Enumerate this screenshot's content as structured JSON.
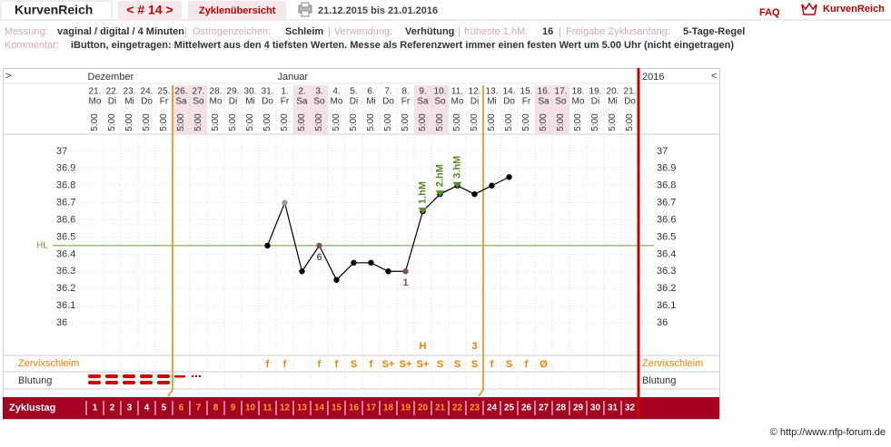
{
  "header": {
    "app": "KurvenReich",
    "cycle_nav": "< # 14 >",
    "overview": "Zyklenübersicht",
    "range": "21.12.2015 bis 21.01.2016",
    "faq": "FAQ",
    "logo": "KurvenReich"
  },
  "info": {
    "measure_label": "Messung:",
    "measure": "vaginal / digital / 4 Minuten",
    "estrogen_label": "Östrogenzeichen:",
    "estrogen": "Schleim",
    "use_label": "Verwendung:",
    "use": "Verhütung",
    "earliest_label": "früheste 1.hM:",
    "earliest": "16",
    "release_label": "Freigabe Zyklusanfang:",
    "release": "5-Tage-Regel",
    "comment_label": "Kommentar:",
    "comment": "iButton, eingetragen: Mittelwert aus den 4 tiefsten Werten. Messe als Referenzwert immer einen festen Wert um 5.00 Uhr (nicht eingetragen)"
  },
  "chart_data": {
    "type": "line",
    "nav_prev": ">",
    "nav_next": "<",
    "year": "2016",
    "months": [
      {
        "label": "Dezember",
        "day": 1
      },
      {
        "label": "Januar",
        "day": 12
      }
    ],
    "dates": [
      "21.",
      "22.",
      "23.",
      "24.",
      "25.",
      "26.",
      "27.",
      "28.",
      "29.",
      "30.",
      "31.",
      "1.",
      "2.",
      "3.",
      "4.",
      "5.",
      "6.",
      "7.",
      "8.",
      "9.",
      "10.",
      "11.",
      "12.",
      "13.",
      "14.",
      "15.",
      "16.",
      "17.",
      "18.",
      "19.",
      "20.",
      "21."
    ],
    "weekdays": [
      "Mo",
      "Di",
      "Mi",
      "Do",
      "Fr",
      "Sa",
      "So",
      "Mo",
      "Di",
      "Mi",
      "Do",
      "Fr",
      "Sa",
      "So",
      "Mo",
      "Di",
      "Mi",
      "Do",
      "Fr",
      "Sa",
      "So",
      "Mo",
      "Di",
      "Mi",
      "Do",
      "Fr",
      "Sa",
      "So",
      "Mo",
      "Di",
      "Mi",
      "Do"
    ],
    "measure_time": "5:00",
    "categories": [
      1,
      2,
      3,
      4,
      5,
      6,
      7,
      8,
      9,
      10,
      11,
      12,
      13,
      14,
      15,
      16,
      17,
      18,
      19,
      20,
      21,
      22,
      23,
      24,
      25,
      26,
      27,
      28,
      29,
      30,
      31,
      32
    ],
    "values": [
      null,
      null,
      null,
      null,
      null,
      null,
      null,
      null,
      null,
      null,
      36.45,
      36.7,
      36.3,
      36.45,
      36.25,
      36.35,
      36.35,
      36.3,
      36.3,
      36.65,
      36.75,
      36.8,
      36.75,
      36.8,
      36.85,
      null,
      null,
      null,
      null,
      null,
      null,
      null
    ],
    "color": "#000000",
    "excluded_days": [
      12
    ],
    "ylim": [
      35.82,
      37.1
    ],
    "yticks": [
      36,
      36.1,
      36.2,
      36.3,
      36.4,
      36.5,
      36.6,
      36.7,
      36.8,
      36.9,
      37
    ],
    "grid": true,
    "hl": {
      "label": "HL",
      "value": 36.45,
      "color": "#6a9a3a"
    },
    "fertile_days": [
      6,
      23
    ],
    "low_markers": [
      {
        "day": 14,
        "label": "6"
      },
      {
        "day": 19,
        "label": "1"
      }
    ],
    "high_markers": [
      {
        "day": 20,
        "label": "1.hM"
      },
      {
        "day": 21,
        "label": "2.hM"
      },
      {
        "day": 22,
        "label": "3.hM"
      }
    ],
    "peak_labels": [
      {
        "day": 20,
        "label": "H"
      },
      {
        "day": 23,
        "label": "3"
      }
    ],
    "mucus_label": "Zervixschleim",
    "mucus": [
      null,
      null,
      null,
      null,
      null,
      null,
      null,
      null,
      null,
      null,
      "f",
      "f",
      null,
      "f",
      "f",
      "S",
      "f",
      "S+",
      "S+",
      "S+",
      "S",
      "S",
      "S",
      "f",
      "S",
      "f",
      "Ø",
      null,
      null,
      null,
      null,
      null
    ],
    "bleeding_label": "Blutung",
    "cycle_label": "Zyklustag"
  },
  "footer": "© http://www.nfp-forum.de"
}
